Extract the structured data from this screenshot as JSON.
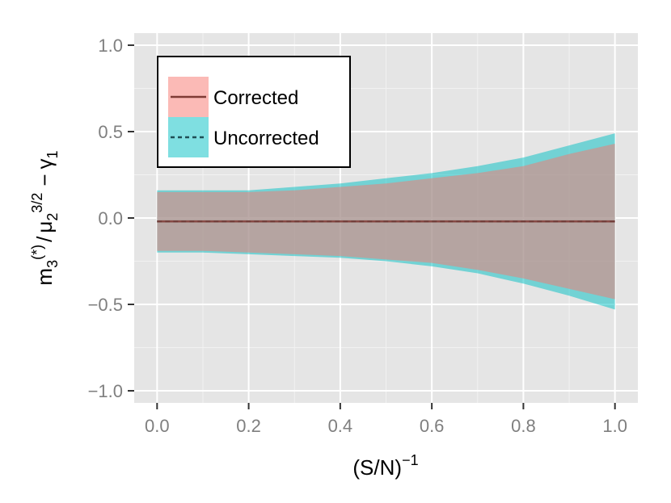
{
  "chart_data": {
    "type": "area",
    "xlabel": "(S/N)",
    "xlabel_superscript": "−1",
    "ylabel": {
      "m": "m",
      "m_sub": "3",
      "m_sup": "(*)",
      "slash": "/",
      "mu": "μ",
      "mu_sub": "2",
      "mu_sup": "3/2",
      "minus": "−",
      "gamma": "γ",
      "gamma_sub": "1"
    },
    "xlim": [
      -0.05,
      1.05
    ],
    "ylim": [
      -1.07,
      1.07
    ],
    "x_ticks": [
      0.0,
      0.2,
      0.4,
      0.6,
      0.8,
      1.0
    ],
    "x_tick_labels": [
      "0.0",
      "0.2",
      "0.4",
      "0.6",
      "0.8",
      "1.0"
    ],
    "y_ticks": [
      -1.0,
      -0.5,
      0.0,
      0.5,
      1.0
    ],
    "y_tick_labels": [
      "−1.0",
      "−0.5",
      "0.0",
      "0.5",
      "1.0"
    ],
    "grid": true,
    "legend_position": "top-left",
    "x": [
      0.0,
      0.1,
      0.2,
      0.3,
      0.4,
      0.5,
      0.6,
      0.7,
      0.8,
      0.9,
      1.0
    ],
    "series": [
      {
        "name": "Uncorrected",
        "line_style": "dashed",
        "fill": "#00bfc4",
        "line_color": "#1f4f55",
        "mean": [
          -0.02,
          -0.02,
          -0.02,
          -0.02,
          -0.02,
          -0.02,
          -0.02,
          -0.02,
          -0.02,
          -0.02,
          -0.02
        ],
        "upper": [
          0.16,
          0.16,
          0.16,
          0.18,
          0.2,
          0.23,
          0.26,
          0.3,
          0.35,
          0.42,
          0.49
        ],
        "lower": [
          -0.2,
          -0.2,
          -0.21,
          -0.22,
          -0.23,
          -0.25,
          -0.28,
          -0.32,
          -0.38,
          -0.45,
          -0.53
        ]
      },
      {
        "name": "Corrected",
        "line_style": "solid",
        "fill": "#f8766d",
        "line_color": "#7f3b35",
        "mean": [
          -0.02,
          -0.02,
          -0.02,
          -0.02,
          -0.02,
          -0.02,
          -0.02,
          -0.02,
          -0.02,
          -0.02,
          -0.02
        ],
        "upper": [
          0.15,
          0.15,
          0.15,
          0.16,
          0.18,
          0.2,
          0.23,
          0.26,
          0.3,
          0.37,
          0.43
        ],
        "lower": [
          -0.19,
          -0.19,
          -0.2,
          -0.21,
          -0.22,
          -0.24,
          -0.26,
          -0.3,
          -0.35,
          -0.41,
          -0.47
        ]
      }
    ]
  },
  "legend": {
    "items": [
      {
        "label": "Corrected",
        "fill": "#f8766d",
        "line_color": "#7f3b35",
        "line_style": "solid"
      },
      {
        "label": "Uncorrected",
        "fill": "#00bfc4",
        "line_color": "#1f4f55",
        "line_style": "dashed"
      }
    ]
  },
  "colors": {
    "panel_background": "#e5e5e5",
    "grid_major": "#ffffff",
    "grid_minor": "#f2f2f2",
    "tick_text": "#7f7f7f"
  }
}
